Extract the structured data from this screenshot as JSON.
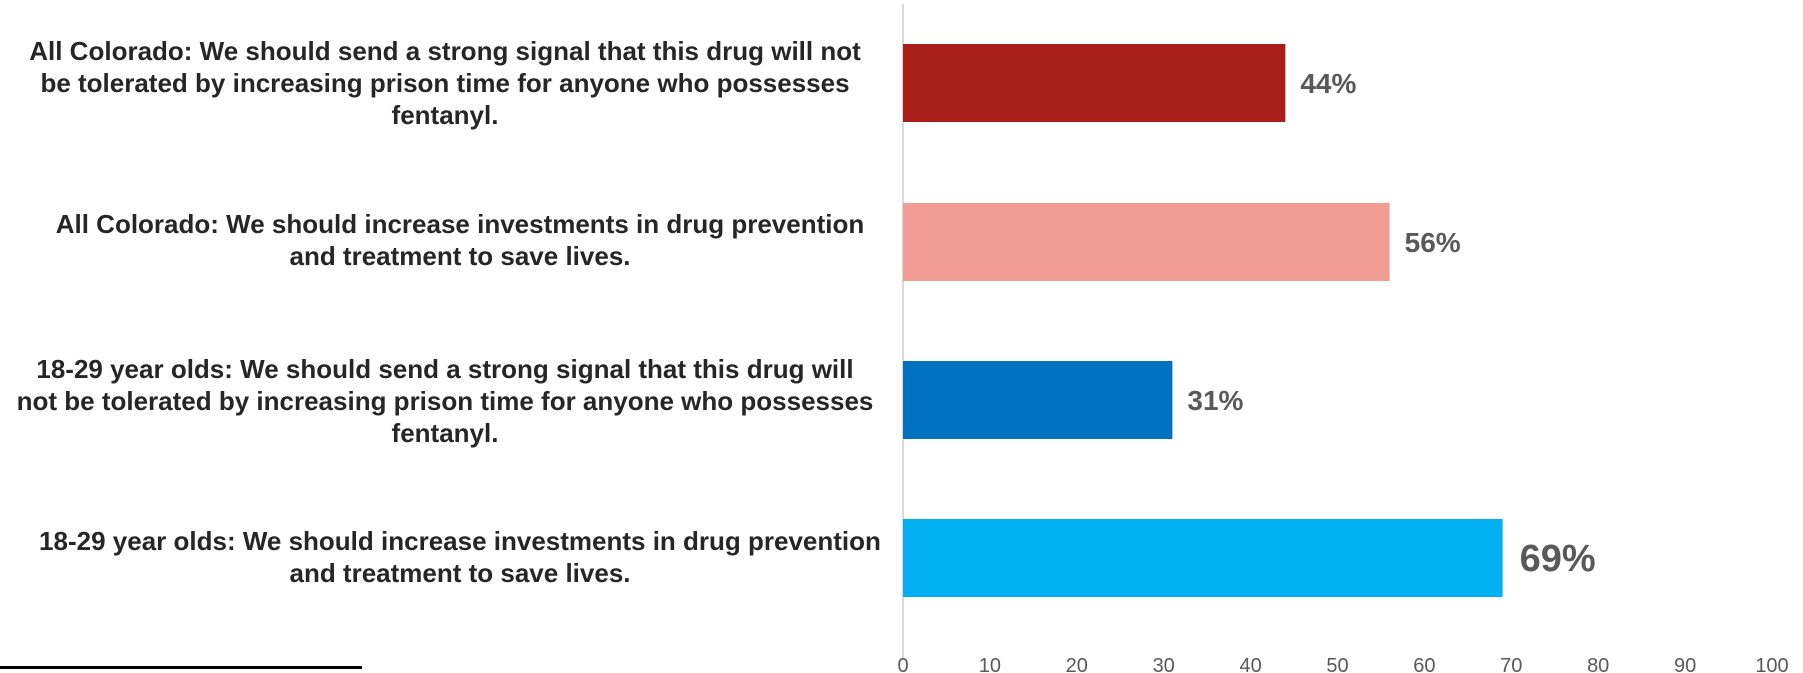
{
  "chart_data": {
    "type": "bar",
    "orientation": "horizontal",
    "categories": [
      "All Colorado: We should send a strong signal that this drug will not be tolerated by increasing prison time for anyone who possesses fentanyl.",
      "All Colorado: We should increase investments in drug prevention and treatment to save lives.",
      "18-29 year olds: We should send a strong signal that this drug will not be tolerated by increasing prison time for anyone who possesses fentanyl.",
      "18-29 year olds: We should increase investments in drug prevention and treatment to save lives."
    ],
    "values": [
      44,
      56,
      31,
      69
    ],
    "data_labels": [
      "44%",
      "56%",
      "31%",
      "69%"
    ],
    "colors": [
      "#a81e19",
      "#f19c95",
      "#0070c0",
      "#00b0f0"
    ],
    "xlim": [
      0,
      100
    ],
    "x_ticks": [
      0,
      10,
      20,
      30,
      40,
      50,
      60,
      70,
      80,
      90,
      100
    ],
    "grid": false,
    "legend": "none",
    "title": "",
    "xlabel": "",
    "ylabel": ""
  }
}
